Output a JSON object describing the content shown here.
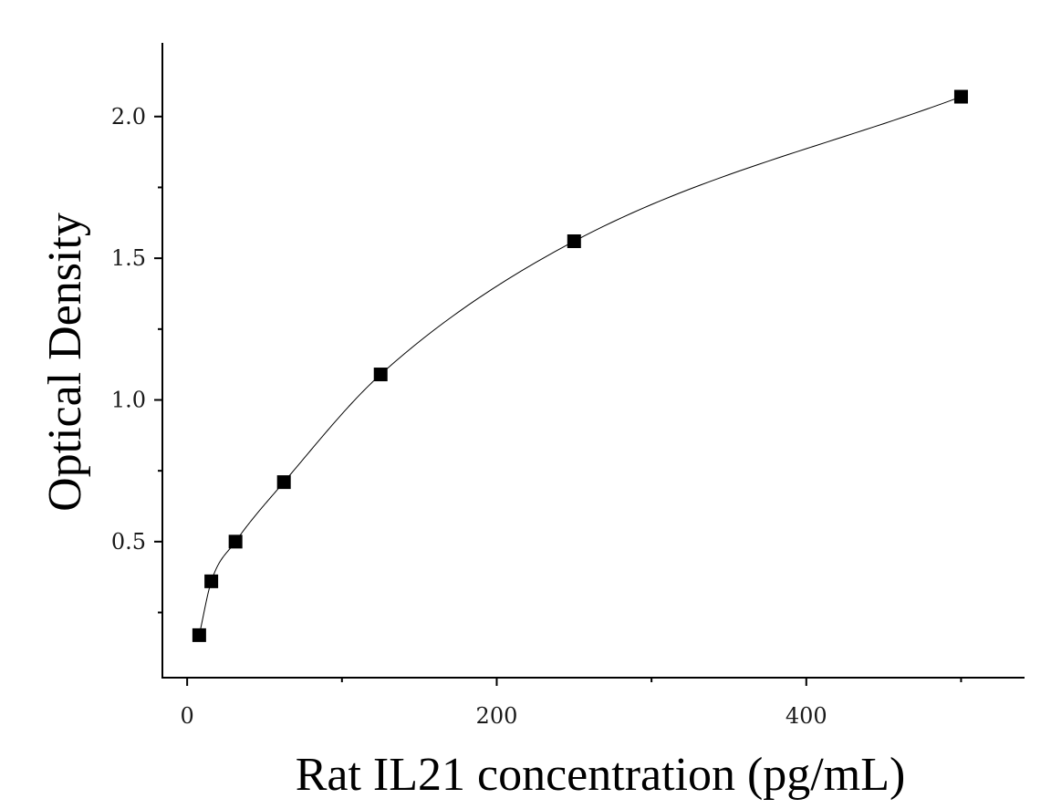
{
  "chart_data": {
    "type": "scatter",
    "xlabel": "Rat IL21 concentration (pg/mL)",
    "ylabel": "Optical Density",
    "xlim": [
      -16,
      541
    ],
    "ylim": [
      0.02,
      2.26
    ],
    "x_ticks": [
      0,
      200,
      400
    ],
    "x_tick_labels": [
      "0",
      "200",
      "400"
    ],
    "x_minor_ticks": [
      100,
      300,
      500
    ],
    "y_ticks": [
      0.5,
      1.0,
      1.5,
      2.0
    ],
    "y_tick_labels": [
      "0.5",
      "1.0",
      "1.5",
      "2.0"
    ],
    "y_minor_ticks": [
      0.25,
      0.75,
      1.25,
      1.75
    ],
    "grid": false,
    "series": [
      {
        "marker": "square",
        "x": [
          7.8,
          15.6,
          31.25,
          62.5,
          125,
          250,
          500
        ],
        "y": [
          0.17,
          0.36,
          0.5,
          0.71,
          1.09,
          1.56,
          2.07
        ]
      }
    ],
    "fit_curve": true
  }
}
